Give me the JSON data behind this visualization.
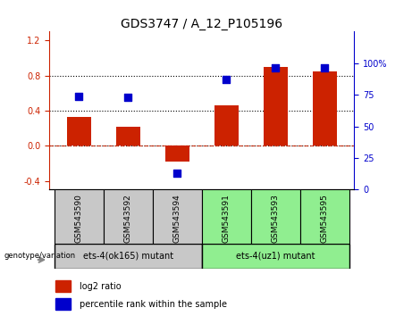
{
  "title": "GDS3747 / A_12_P105196",
  "samples": [
    "GSM543590",
    "GSM543592",
    "GSM543594",
    "GSM543591",
    "GSM543593",
    "GSM543595"
  ],
  "log2_ratio": [
    0.33,
    0.22,
    -0.18,
    0.46,
    0.9,
    0.85
  ],
  "percentile_rank": [
    74,
    73,
    13,
    87,
    96,
    96
  ],
  "bar_color": "#CC2200",
  "dot_color": "#0000CC",
  "ylim_left": [
    -0.5,
    1.3
  ],
  "ylim_right": [
    0,
    125
  ],
  "yticks_left": [
    -0.4,
    0.0,
    0.4,
    0.8,
    1.2
  ],
  "yticks_right": [
    0,
    25,
    50,
    75,
    100
  ],
  "hlines": [
    0.0,
    0.4,
    0.8
  ],
  "group1_label": "ets-4(ok165) mutant",
  "group2_label": "ets-4(uz1) mutant",
  "genotype_label": "genotype/variation",
  "legend_items": [
    "log2 ratio",
    "percentile rank within the sample"
  ],
  "legend_colors": [
    "#CC2200",
    "#0000CC"
  ],
  "group1_bg": "#C8C8C8",
  "group2_bg": "#90EE90",
  "bar_width": 0.5,
  "dot_size": 28,
  "tick_fontsize": 7,
  "title_fontsize": 10,
  "label_fontsize": 6.5,
  "legend_fontsize": 7
}
